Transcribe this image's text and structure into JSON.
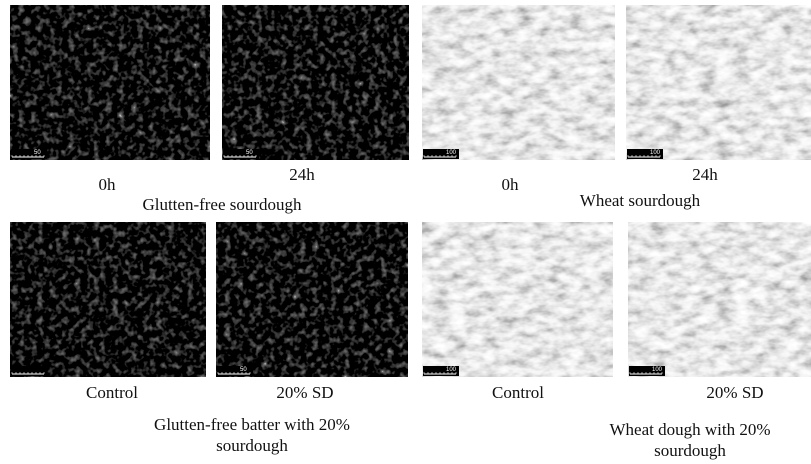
{
  "groups": [
    {
      "title_lines": [
        "Glutten-free sourdough"
      ],
      "panels": [
        {
          "label": "0h",
          "scale": "50"
        },
        {
          "label": "24h",
          "scale": "50"
        }
      ]
    },
    {
      "title_lines": [
        "Wheat sourdough"
      ],
      "panels": [
        {
          "label": "0h",
          "scale": "100"
        },
        {
          "label": "24h",
          "scale": "100"
        }
      ]
    },
    {
      "title_lines": [
        "Glutten-free batter with 20%",
        "sourdough"
      ],
      "panels": [
        {
          "label": "Control",
          "scale": ""
        },
        {
          "label": "20% SD",
          "scale": "50"
        }
      ]
    },
    {
      "title_lines": [
        "Wheat dough with 20%",
        "sourdough"
      ],
      "panels": [
        {
          "label": "Control",
          "scale": "100"
        },
        {
          "label": "20% SD",
          "scale": "100"
        }
      ]
    }
  ]
}
